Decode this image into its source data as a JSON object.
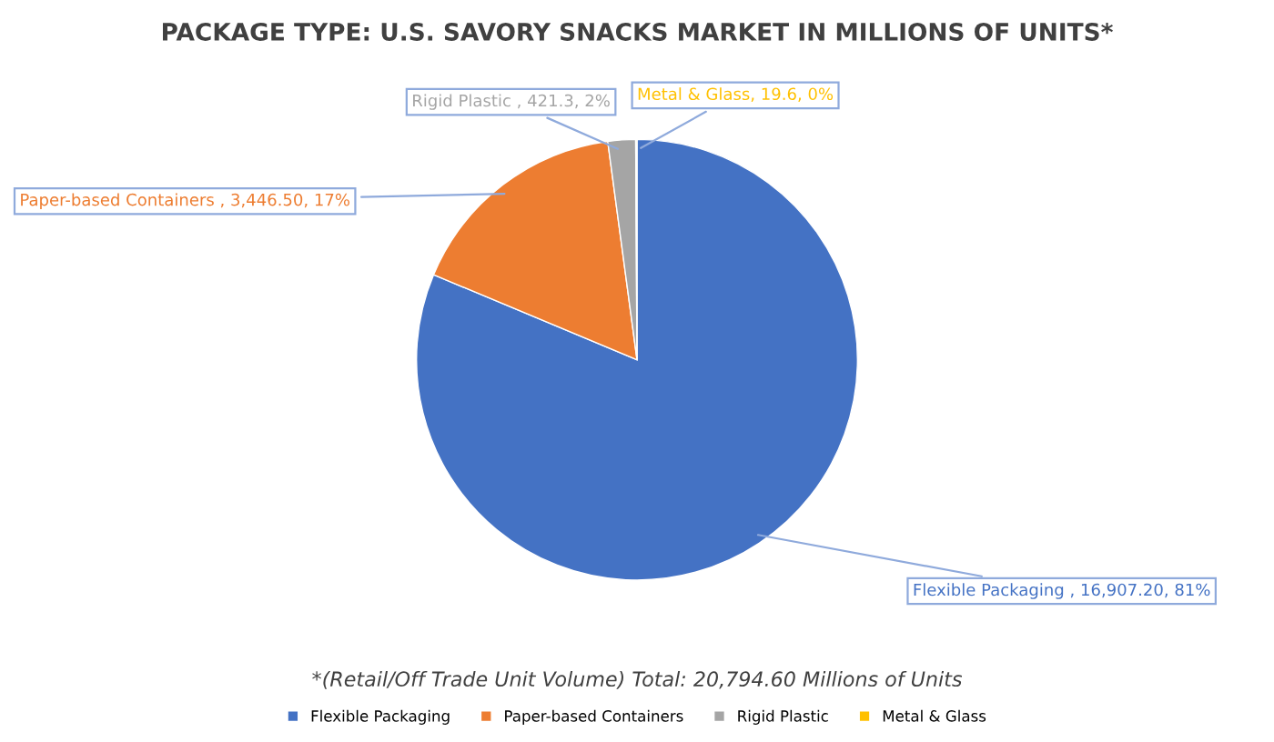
{
  "chart_data": {
    "type": "pie",
    "title": "PACKAGE TYPE: U.S. SAVORY SNACKS MARKET IN MILLIONS OF UNITS*",
    "categories": [
      "Flexible Packaging",
      "Paper-based Containers",
      "Rigid Plastic",
      "Metal & Glass"
    ],
    "values": [
      16907.2,
      3446.5,
      421.3,
      19.6
    ],
    "colors": [
      "#4472c4",
      "#ed7d31",
      "#a5a5a5",
      "#ffc000"
    ],
    "value_labels": [
      "Flexible Packaging , 16,907.20, 81%",
      "Paper-based Containers , 3,446.50, 17%",
      "Rigid Plastic , 421.3, 2%",
      "Metal & Glass, 19.6, 0%"
    ],
    "annotations": [
      "*(Retail/Off Trade Unit Volume) Total: 20,794.60 Millions of Units"
    ],
    "legend": "bottom"
  }
}
